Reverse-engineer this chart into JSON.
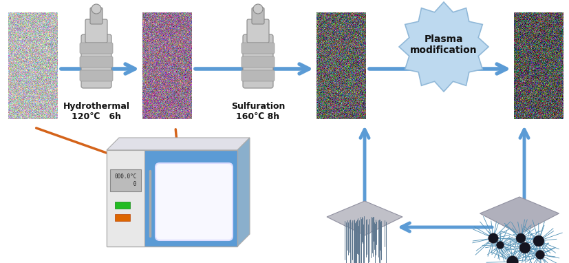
{
  "fig_width": 8.27,
  "fig_height": 3.82,
  "dpi": 100,
  "bg_color": "#ffffff",
  "arrow_blue": "#5B9BD5",
  "arrow_orange": "#D4631A",
  "plasma_star_color": "#BDD9EF",
  "plasma_star_edge": "#90B8D8",
  "text_hydrothermal_1": "Hydrothermal",
  "text_hydrothermal_2": "120℃   6h",
  "text_sulfuration_1": "Sulfuration",
  "text_sulfuration_2": "160℃ 8h",
  "text_plasma": "Plasma\nmodification",
  "oven_display_text": "000.0°C\n      0",
  "green_button": "#22BB22",
  "orange_button": "#DD6600",
  "oven_blue": "#5B9BD5",
  "oven_panel": "#E8E8E8",
  "oven_edge": "#AAAAAA"
}
